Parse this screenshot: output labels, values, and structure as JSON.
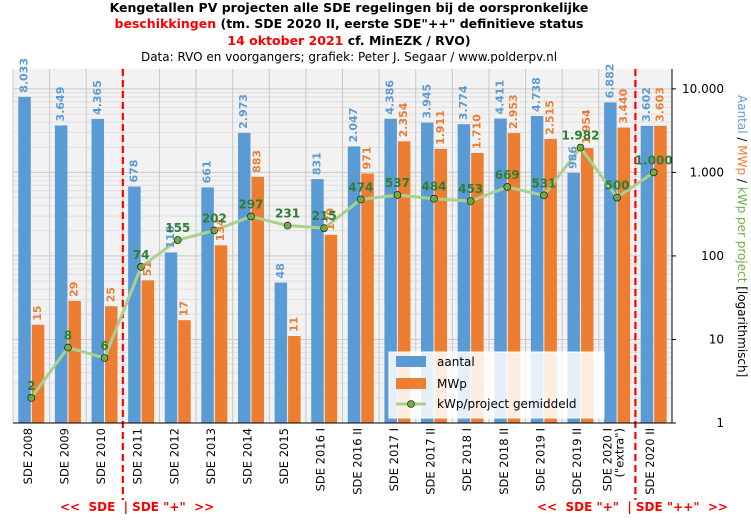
{
  "title": {
    "line1": "Kengetallen PV projecten alle SDE regelingen bij de oorspronkelijke",
    "line2_red": "beschikkingen",
    "line2_rest": " (tm. SDE 2020 II, eerste SDE\"++\"  definitieve status",
    "line3_red": "14 oktober 2021",
    "line3_rest": " cf. MinEZK / RVO)",
    "line4": "Data: RVO en voorgangers; grafiek: Peter J. Segaar / www.polderpv.nl"
  },
  "right_axis_label": {
    "part1": "Aantal",
    "sep1": " / ",
    "part2": "MWp",
    "sep2": " / ",
    "part3": "kWp per project",
    "part4": " [logarithmisch]"
  },
  "footer": {
    "left": "<<  SDE  | SDE \"+\"  >>",
    "right": "<<  SDE \"+\"  | SDE \"++\"  >>"
  },
  "colors": {
    "aantal": "#5b9bd5",
    "mwp": "#ed7d31",
    "kwp_line": "#a9d18e",
    "kwp_marker": "#70ad47",
    "grid": "#c8c8c8",
    "plot_bg": "#f2f2f2",
    "divider": "#ff0000",
    "title_red": "#ff0000"
  },
  "chart_data": {
    "type": "bar",
    "y_scale": "log",
    "ylim": [
      1,
      30000
    ],
    "y_ticks": [
      1,
      10,
      100,
      1000,
      10000
    ],
    "y_tick_labels": [
      "1",
      "10",
      "100",
      "1.000",
      "10.000"
    ],
    "grid": true,
    "legend_position": "bottom-right",
    "categories": [
      "SDE 2008",
      "SDE 2009",
      "SDE 2010",
      "SDE 2011",
      "SDE 2012",
      "SDE 2013",
      "SDE 2014",
      "SDE 2015",
      "SDE 2016 I",
      "SDE 2016 II",
      "SDE 2017 I",
      "SDE 2017 II",
      "SDE 2018 I",
      "SDE 2018 II",
      "SDE 2019 I",
      "SDE 2019 II",
      "SDE 2020 I (\"extra\")",
      "SDE 2020 II"
    ],
    "category_lines": [
      [
        "SDE 2008"
      ],
      [
        "SDE 2009"
      ],
      [
        "SDE 2010"
      ],
      [
        "SDE 2011"
      ],
      [
        "SDE 2012"
      ],
      [
        "SDE 2013"
      ],
      [
        "SDE 2014"
      ],
      [
        "SDE 2015"
      ],
      [
        "SDE 2016 I"
      ],
      [
        "SDE 2016 II"
      ],
      [
        "SDE 2017 I"
      ],
      [
        "SDE 2017 II"
      ],
      [
        "SDE 2018 I"
      ],
      [
        "SDE 2018 II"
      ],
      [
        "SDE 2019 I"
      ],
      [
        "SDE 2019 II"
      ],
      [
        "SDE 2020 I",
        "(\"extra\")"
      ],
      [
        "SDE 2020 II"
      ]
    ],
    "series": [
      {
        "name": "aantal",
        "kind": "bar",
        "values": [
          8033,
          3649,
          4365,
          678,
          110,
          661,
          2973,
          48,
          831,
          2047,
          4386,
          3945,
          3774,
          4411,
          4738,
          986,
          6882,
          3602
        ],
        "labels": [
          "8.033",
          "3.649",
          "4.365",
          "678",
          "110",
          "661",
          "2.973",
          "48",
          "831",
          "2.047",
          "4.386",
          "3.945",
          "3.774",
          "4.411",
          "4.738",
          "986",
          "6.882",
          "3.602"
        ]
      },
      {
        "name": "MWp",
        "kind": "bar",
        "values": [
          15,
          29,
          25,
          51,
          17,
          134,
          883,
          11,
          179,
          971,
          2354,
          1911,
          1710,
          2953,
          2515,
          1954,
          3440,
          3603
        ],
        "labels": [
          "15",
          "29",
          "25",
          "51",
          "17",
          "134",
          "883",
          "11",
          "179",
          "971",
          "2.354",
          "1.911",
          "1.710",
          "2.953",
          "2.515",
          "1.954",
          "3.440",
          "3.603"
        ]
      },
      {
        "name": "kWp/project gemiddeld",
        "kind": "line",
        "values": [
          2,
          8,
          6,
          74,
          155,
          202,
          297,
          231,
          215,
          474,
          537,
          484,
          453,
          669,
          531,
          1982,
          500,
          1000
        ],
        "labels": [
          "2",
          "8",
          "6",
          "74",
          "155",
          "202",
          "297",
          "231",
          "215",
          "474",
          "537",
          "484",
          "453",
          "669",
          "531",
          "1.982",
          "500",
          "1.000"
        ]
      }
    ],
    "dividers_after_index": [
      2,
      16
    ]
  }
}
